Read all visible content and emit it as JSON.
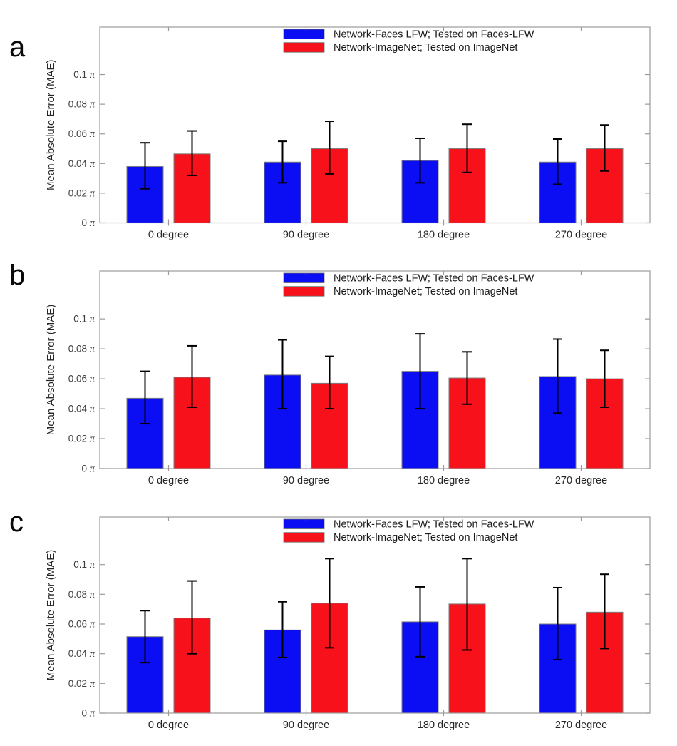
{
  "figure": {
    "background": "#ffffff",
    "frame_color": "#9b9b9b",
    "errorbar_color": "#000000"
  },
  "chart_data": [
    {
      "panel_label": "a",
      "type": "bar",
      "title": "",
      "categories": [
        "0 degree",
        "90 degree",
        "180 degree",
        "270 degree"
      ],
      "ylabel": "Mean Absolute Error (MAE)",
      "xlabel": "",
      "yticks": [
        0,
        0.02,
        0.04,
        0.06,
        0.08,
        0.1
      ],
      "ytick_unit": "π",
      "ylim": [
        0,
        0.132
      ],
      "unit": "pi_radians",
      "grid": false,
      "legend_position": "top-inside",
      "error_bars": true,
      "series": [
        {
          "name": "Network-Faces LFW; Tested on Faces-LFW",
          "color": "#0b0df2",
          "values": [
            0.038,
            0.041,
            0.042,
            0.041
          ],
          "err_low": [
            0.023,
            0.027,
            0.027,
            0.026
          ],
          "err_high": [
            0.054,
            0.055,
            0.057,
            0.0565
          ]
        },
        {
          "name": "Network-ImageNet; Tested on ImageNet",
          "color": "#f7111b",
          "values": [
            0.0465,
            0.05,
            0.05,
            0.05
          ],
          "err_low": [
            0.032,
            0.033,
            0.034,
            0.035
          ],
          "err_high": [
            0.062,
            0.0685,
            0.0665,
            0.066
          ]
        }
      ]
    },
    {
      "panel_label": "b",
      "type": "bar",
      "title": "",
      "categories": [
        "0 degree",
        "90 degree",
        "180 degree",
        "270 degree"
      ],
      "ylabel": "Mean Absolute Error (MAE)",
      "xlabel": "",
      "yticks": [
        0,
        0.02,
        0.04,
        0.06,
        0.08,
        0.1
      ],
      "ytick_unit": "π",
      "ylim": [
        0,
        0.132
      ],
      "unit": "pi_radians",
      "grid": false,
      "legend_position": "top-inside",
      "error_bars": true,
      "series": [
        {
          "name": "Network-Faces LFW; Tested on Faces-LFW",
          "color": "#0b0df2",
          "values": [
            0.047,
            0.0625,
            0.065,
            0.0615
          ],
          "err_low": [
            0.03,
            0.04,
            0.04,
            0.037
          ],
          "err_high": [
            0.065,
            0.086,
            0.09,
            0.0865
          ]
        },
        {
          "name": "Network-ImageNet; Tested on ImageNet",
          "color": "#f7111b",
          "values": [
            0.061,
            0.057,
            0.0605,
            0.06
          ],
          "err_low": [
            0.041,
            0.04,
            0.043,
            0.041
          ],
          "err_high": [
            0.082,
            0.075,
            0.078,
            0.079
          ]
        }
      ]
    },
    {
      "panel_label": "c",
      "type": "bar",
      "title": "",
      "categories": [
        "0 degree",
        "90 degree",
        "180 degree",
        "270 degree"
      ],
      "ylabel": "Mean Absolute Error (MAE)",
      "xlabel": "",
      "yticks": [
        0,
        0.02,
        0.04,
        0.06,
        0.08,
        0.1
      ],
      "ytick_unit": "π",
      "ylim": [
        0,
        0.132
      ],
      "unit": "pi_radians",
      "grid": false,
      "legend_position": "top-inside",
      "error_bars": true,
      "series": [
        {
          "name": "Network-Faces LFW; Tested on Faces-LFW",
          "color": "#0b0df2",
          "values": [
            0.0515,
            0.056,
            0.0615,
            0.06
          ],
          "err_low": [
            0.034,
            0.0375,
            0.038,
            0.036
          ],
          "err_high": [
            0.069,
            0.075,
            0.085,
            0.0845
          ]
        },
        {
          "name": "Network-ImageNet; Tested on ImageNet",
          "color": "#f7111b",
          "values": [
            0.064,
            0.074,
            0.0735,
            0.068
          ],
          "err_low": [
            0.04,
            0.044,
            0.0425,
            0.0435
          ],
          "err_high": [
            0.089,
            0.104,
            0.104,
            0.0935
          ]
        }
      ]
    }
  ]
}
